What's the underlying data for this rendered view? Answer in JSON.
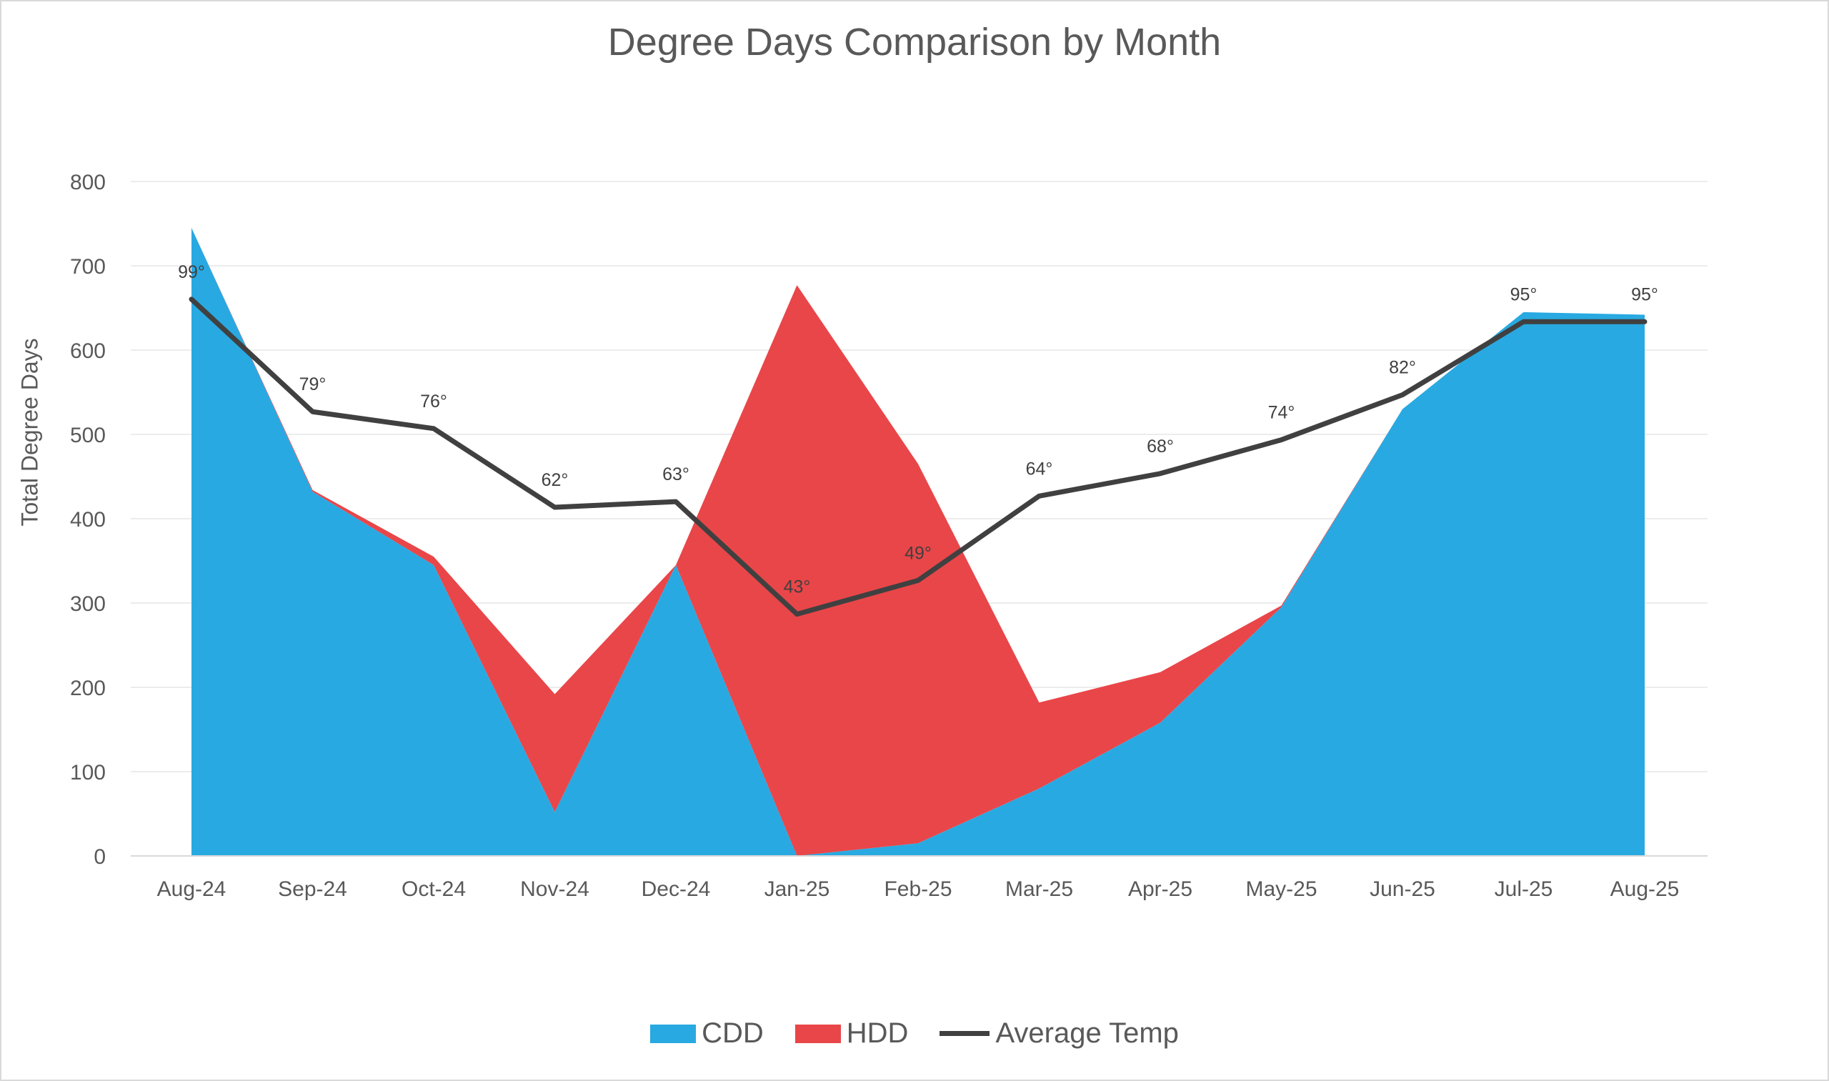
{
  "chart_data": {
    "type": "area",
    "title": "Degree Days Comparison by Month",
    "ylabel": "Total Degree Days",
    "xlabel": "",
    "ylim": [
      0,
      800
    ],
    "yticks": [
      0,
      100,
      200,
      300,
      400,
      500,
      600,
      700,
      800
    ],
    "grid": true,
    "legend_position": "bottom",
    "categories": [
      "Aug-24",
      "Sep-24",
      "Oct-24",
      "Nov-24",
      "Dec-24",
      "Jan-25",
      "Feb-25",
      "Mar-25",
      "Apr-25",
      "May-25",
      "Jun-25",
      "Jul-25",
      "Aug-25"
    ],
    "series": [
      {
        "name": "CDD",
        "type": "area",
        "stacked": true,
        "color": "#29a9e1",
        "values": [
          745,
          432,
          345,
          52,
          345,
          0,
          15,
          80,
          158,
          295,
          530,
          645,
          642
        ]
      },
      {
        "name": "HDD",
        "type": "area",
        "stacked": true,
        "color": "#e94649",
        "values": [
          0,
          2,
          10,
          140,
          0,
          677,
          450,
          102,
          60,
          2,
          0,
          0,
          0
        ]
      },
      {
        "name": "Average Temp",
        "type": "line",
        "color": "#404040",
        "values": [
          99,
          79,
          76,
          62,
          63,
          43,
          49,
          64,
          68,
          74,
          82,
          95,
          95
        ],
        "data_labels": [
          "99°",
          "79°",
          "76°",
          "62°",
          "63°",
          "43°",
          "49°",
          "64°",
          "68°",
          "74°",
          "82°",
          "95°",
          "95°"
        ]
      }
    ],
    "temp_axis_scale": 6.67
  }
}
